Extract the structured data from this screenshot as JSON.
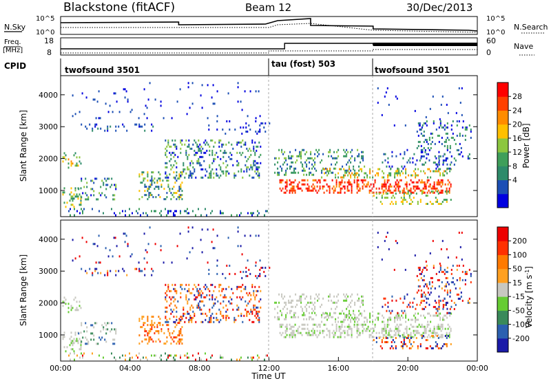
{
  "header": {
    "station": "Blackstone (fitACF)",
    "beam": "Beam 12",
    "date": "30/Dec/2013"
  },
  "top_panels": {
    "nsky_label": "N.Sky",
    "nsky_ticks": [
      "10^5",
      "10^0"
    ],
    "nsearch_label": "N.Search",
    "nsearch_ticks": [
      "10^5",
      "10^0"
    ],
    "freq_label_1": "Freq.",
    "freq_label_2": "[MHz]",
    "freq_ticks": [
      "18",
      "8"
    ],
    "nave_label": "Nave",
    "nave_ticks": [
      "60",
      "0"
    ],
    "cpid_label": "CPID",
    "cpid_segments": [
      {
        "start": 0,
        "label": "twofsound 3501"
      },
      {
        "start": 12.0,
        "label": "tau (fost) 503"
      },
      {
        "start": 18.0,
        "label": "twofsound 3501"
      }
    ]
  },
  "chart_data": [
    {
      "type": "heatmap",
      "name": "power-panel",
      "ylabel": "Slant Range [km]",
      "xlim": [
        0,
        24
      ],
      "ylim": [
        180,
        4600
      ],
      "yticks": [
        1000,
        2000,
        3000,
        4000
      ],
      "colorbar": {
        "label": "Power [dB]",
        "ticks": [
          "28",
          "24",
          "20",
          "16",
          "12",
          "8",
          "4"
        ],
        "colors": [
          "#0000e0",
          "#1c4fb5",
          "#2e8b6a",
          "#3f9f5a",
          "#8cc63f",
          "#ffc000",
          "#ff8c00",
          "#ff4000",
          "#ff0000"
        ]
      }
    },
    {
      "type": "heatmap",
      "name": "velocity-panel",
      "ylabel": "Slant Range [km]",
      "xlabel": "Time UT",
      "xlim": [
        0,
        24
      ],
      "ylim": [
        180,
        4600
      ],
      "yticks": [
        1000,
        2000,
        3000,
        4000
      ],
      "xticks": [
        "00:00",
        "04:00",
        "08:00",
        "12:00",
        "16:00",
        "20:00",
        "00:00"
      ],
      "colorbar": {
        "label": "Velocity [m s",
        "label_sup": "-1",
        "label_end": "]",
        "ticks": [
          "200",
          "100",
          "50",
          "15",
          "-15",
          "-50",
          "-100",
          "-200"
        ],
        "colors": [
          "#1a1aa8",
          "#2b60b0",
          "#3a8a5a",
          "#66cc33",
          "#c8c8c0",
          "#ffa020",
          "#ff7a00",
          "#ff3000",
          "#ee0000"
        ]
      }
    }
  ]
}
